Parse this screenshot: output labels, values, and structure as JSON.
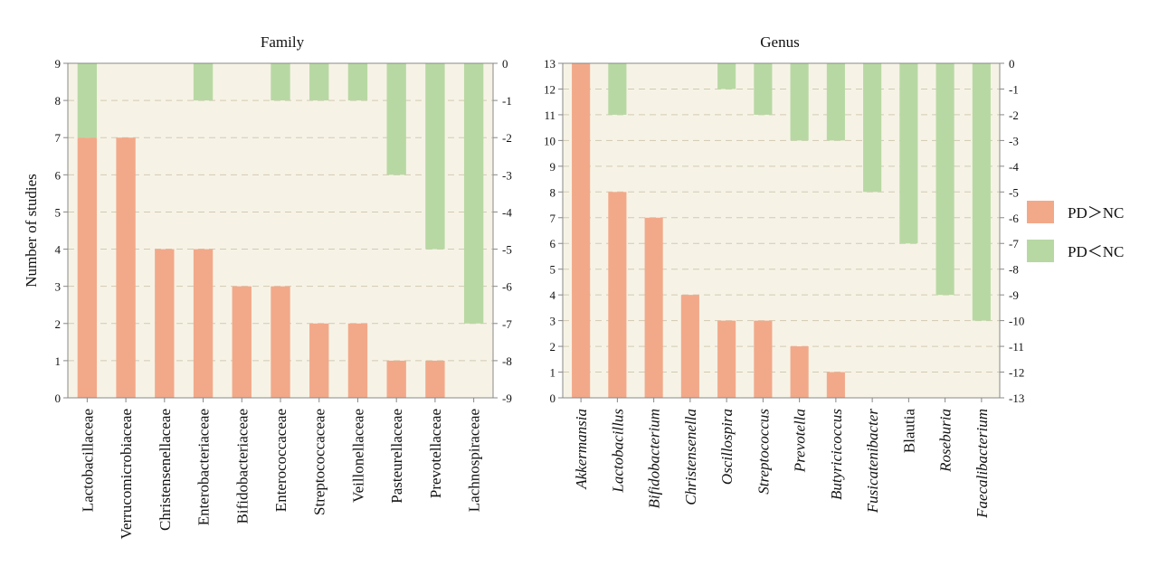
{
  "colors": {
    "pd_gt_nc": "#f2a98a",
    "pd_lt_nc": "#b8d8a3",
    "plot_bg": "#f6f3e6",
    "grid": "#d2c9b2",
    "axis": "#888888"
  },
  "legend": {
    "items": [
      {
        "label": "PD＞NC",
        "color_key": "pd_gt_nc"
      },
      {
        "label": "PD＜NC",
        "color_key": "pd_lt_nc"
      }
    ],
    "placement": "right"
  },
  "ylabel": "Number of studies",
  "chart_data": [
    {
      "type": "bar",
      "title": "Family",
      "ylim": [
        0,
        9
      ],
      "y2lim": [
        0,
        -9
      ],
      "yticks": [
        "0",
        "1",
        "2",
        "3",
        "4",
        "5",
        "6",
        "7",
        "8",
        "9"
      ],
      "y2ticks": [
        "0",
        "-1",
        "-2",
        "-3",
        "-4",
        "-5",
        "-6",
        "-7",
        "-8",
        "-9"
      ],
      "grid": true,
      "categories": [
        "Lactobacillaceae",
        "Verrucomicrobiaceae",
        "Christensenellaceae",
        "Enterobacteriaceae",
        "Bifidobacteriaceae",
        "Enterococcaceae",
        "Streptococcaceae",
        "Veillonellaceae",
        "Pasteurellaceae",
        "Prevotellaceae",
        "Lachnospiraceae"
      ],
      "italic": [
        false,
        false,
        false,
        false,
        false,
        false,
        false,
        false,
        false,
        false,
        false
      ],
      "series": [
        {
          "name": "PD＞NC",
          "values": [
            7,
            7,
            4,
            4,
            3,
            3,
            2,
            2,
            1,
            1,
            0
          ]
        },
        {
          "name": "PD＜NC",
          "values": [
            -2,
            0,
            0,
            -1,
            0,
            -1,
            -1,
            -1,
            -3,
            -5,
            -7
          ]
        }
      ]
    },
    {
      "type": "bar",
      "title": "Genus",
      "ylim": [
        0,
        13
      ],
      "y2lim": [
        0,
        -13
      ],
      "yticks": [
        "0",
        "1",
        "2",
        "3",
        "4",
        "5",
        "6",
        "7",
        "8",
        "9",
        "10",
        "11",
        "12",
        "13"
      ],
      "y2ticks": [
        "0",
        "-1",
        "-2",
        "-3",
        "-4",
        "-5",
        "-6",
        "-7",
        "-8",
        "-9",
        "-10",
        "-11",
        "-12",
        "-13"
      ],
      "grid": true,
      "categories": [
        "Akkermansia",
        "Lactobacillus",
        "Bifidobacterium",
        "Christensenella",
        "Oscillospira",
        "Streptococcus",
        "Prevotella",
        "Butyricicoccus",
        "Fusicatenibacter",
        "Blautia",
        "Roseburia",
        "Faecalibacterium"
      ],
      "italic": [
        true,
        true,
        true,
        true,
        true,
        true,
        true,
        true,
        true,
        false,
        true,
        true
      ],
      "series": [
        {
          "name": "PD＞NC",
          "values": [
            13,
            8,
            7,
            4,
            3,
            3,
            2,
            1,
            0,
            0,
            0,
            0
          ]
        },
        {
          "name": "PD＜NC",
          "values": [
            0,
            -2,
            0,
            0,
            -1,
            -2,
            -3,
            -3,
            -5,
            -7,
            -9,
            -10
          ]
        }
      ]
    }
  ]
}
